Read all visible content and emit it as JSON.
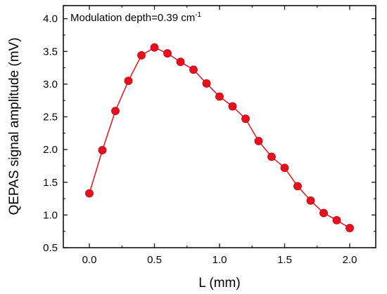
{
  "chart_data": {
    "type": "line",
    "title": "",
    "xlabel": "L (mm)",
    "ylabel": "QEPAS signal amplitude (mV)",
    "xlim": [
      -0.2,
      2.2
    ],
    "ylim": [
      0.5,
      4.2
    ],
    "xticks": [
      "0.0",
      "0.5",
      "1.0",
      "1.5",
      "2.0"
    ],
    "yticks": [
      "0.5",
      "1.0",
      "1.5",
      "2.0",
      "2.5",
      "3.0",
      "3.5",
      "4.0"
    ],
    "annotation": {
      "text": "Modulation depth=0.39 cm",
      "superscript": "-1"
    },
    "grid": false,
    "color": "#e8101c",
    "x": [
      0.0,
      0.1,
      0.2,
      0.3,
      0.4,
      0.5,
      0.6,
      0.7,
      0.8,
      0.9,
      1.0,
      1.1,
      1.2,
      1.3,
      1.4,
      1.5,
      1.6,
      1.7,
      1.8,
      1.9,
      2.0
    ],
    "y": [
      1.33,
      1.99,
      2.59,
      3.05,
      3.44,
      3.56,
      3.47,
      3.34,
      3.22,
      3.01,
      2.81,
      2.66,
      2.47,
      2.13,
      1.89,
      1.72,
      1.44,
      1.22,
      1.03,
      0.92,
      0.8
    ]
  }
}
